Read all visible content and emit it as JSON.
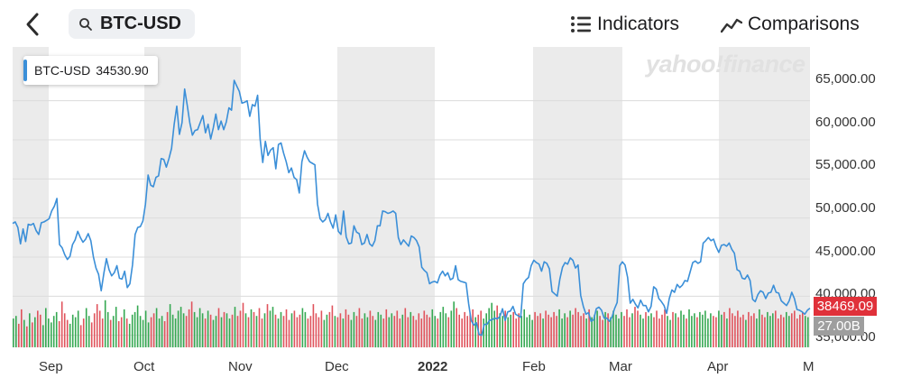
{
  "header": {
    "search_value": "BTC-USD",
    "indicators_label": "Indicators",
    "comparisons_label": "Comparisons"
  },
  "quote": {
    "symbol": "BTC-USD",
    "value": "34530.90"
  },
  "watermark": "yahoo!finance",
  "last_price_label": "38469.09",
  "volume_label": "27.00B",
  "colors": {
    "line": "#3b8fd8",
    "vol_up": "#35a852",
    "vol_down": "#e0535c",
    "band": "#ebebeb",
    "last_price": "#e0313a"
  },
  "chart_data": {
    "type": "line",
    "ticker": "BTC-USD",
    "x_tick_labels": [
      "Sep",
      "Oct",
      "Nov",
      "Dec",
      "2022",
      "Feb",
      "Mar",
      "Apr",
      "M"
    ],
    "y_tick_labels": [
      "65,000.00",
      "60,000.00",
      "55,000.00",
      "50,000.00",
      "45,000.00",
      "40,000.00",
      "35,000.00"
    ],
    "ylim": [
      34500,
      67500
    ],
    "x_start": "2021-08-24",
    "series": [
      {
        "values": [
          49300,
          49500,
          48800,
          46700,
          48600,
          47000,
          49200,
          49100,
          49300,
          48400,
          47900,
          49400,
          49500,
          49700,
          49900,
          50900,
          51500,
          52500,
          46600,
          46200,
          45300,
          44700,
          45100,
          46600,
          47200,
          48300,
          47500,
          46900,
          47300,
          48000,
          47100,
          45000,
          43600,
          42800,
          40700,
          42900,
          44800,
          43400,
          42600,
          43000,
          43900,
          42300,
          42200,
          43200,
          41100,
          41600,
          44000,
          47900,
          48800,
          48900,
          49600,
          51800,
          55500,
          54200,
          54000,
          55200,
          55400,
          57600,
          57500,
          56500,
          57600,
          58900,
          62000,
          64300,
          60700,
          62200,
          66500,
          64400,
          62200,
          60600,
          61200,
          61300,
          62200,
          63100,
          60900,
          62000,
          60100,
          61500,
          63300,
          61300,
          62400,
          61300,
          62300,
          64100,
          63800,
          67600,
          66900,
          66200,
          64700,
          64800,
          65000,
          63000,
          64500,
          64300,
          65700,
          60100,
          57100,
          59800,
          58000,
          58700,
          59000,
          56300,
          59400,
          59600,
          58300,
          57200,
          55800,
          56400,
          55200,
          54900,
          53200,
          57200,
          58600,
          57800,
          57200,
          57000,
          56800,
          51800,
          49900,
          49500,
          49800,
          50600,
          49500,
          48700,
          50400,
          48300,
          47900,
          50900,
          47600,
          46700,
          46800,
          49000,
          48200,
          48000,
          46600,
          46800,
          47900,
          46700,
          46400,
          47100,
          49000,
          49000,
          50900,
          50800,
          50600,
          50700,
          50900,
          50600,
          47500,
          46600,
          47200,
          46800,
          46400,
          47700,
          47500,
          47100,
          46300,
          43700,
          43300,
          43000,
          41600,
          41800,
          41900,
          41700,
          42700,
          43200,
          42600,
          43000,
          42100,
          42300,
          43900,
          42100,
          41900,
          41800,
          41700,
          39000,
          36900,
          36300,
          36600,
          35100,
          35000,
          36400,
          36400,
          36900,
          37000,
          37200,
          37100,
          37400,
          38400,
          36900,
          38000,
          38100,
          38700,
          37700,
          37500,
          37300,
          41600,
          42100,
          42400,
          43900,
          44600,
          44300,
          44100,
          43200,
          44400,
          44200,
          43500,
          40600,
          40300,
          40000,
          42200,
          43700,
          44300,
          44100,
          44900,
          44600,
          43600,
          44000,
          40100,
          38700,
          37700,
          37900,
          36800,
          37000,
          38400,
          38600,
          38200,
          37200,
          37200,
          36800,
          37300,
          38400,
          39200,
          43900,
          44400,
          44000,
          42400,
          39100,
          39600,
          39000,
          38500,
          39500,
          38800,
          38800,
          38000,
          38700,
          41200,
          40900,
          39700,
          39300,
          38800,
          37800,
          39700,
          40800,
          40500,
          41500,
          41100,
          41400,
          42000,
          41900,
          43100,
          44300,
          44500,
          44200,
          44400,
          46800,
          47100,
          47500,
          47100,
          47300,
          46300,
          45600,
          46500,
          46600,
          46400,
          46800,
          46000,
          45500,
          43400,
          43200,
          42300,
          42200,
          42700,
          42000,
          39600,
          39300,
          40200,
          40700,
          40500,
          39700,
          40400,
          40500,
          41400,
          40500,
          40400,
          39400,
          39100,
          38800,
          39400,
          40500,
          39700,
          38300,
          38200,
          38000,
          37700,
          38200,
          38469
        ]
      }
    ],
    "volume_series": [
      22,
      24,
      18,
      29,
      21,
      16,
      26,
      19,
      23,
      28,
      25,
      17,
      30,
      22,
      19,
      24,
      27,
      20,
      35,
      26,
      21,
      18,
      25,
      23,
      28,
      17,
      22,
      30,
      24,
      19,
      26,
      33,
      28,
      22,
      36,
      27,
      21,
      24,
      31,
      20,
      23,
      29,
      22,
      18,
      25,
      27,
      32,
      24,
      21,
      28,
      19,
      23,
      26,
      30,
      22,
      24,
      20,
      27,
      33,
      25,
      22,
      28,
      31,
      26,
      24,
      29,
      35,
      27,
      23,
      30,
      26,
      22,
      28,
      25,
      21,
      24,
      30,
      23,
      27,
      26,
      22,
      25,
      31,
      24,
      28,
      34,
      26,
      23,
      29,
      27,
      24,
      30,
      22,
      26,
      33,
      28,
      31,
      25,
      22,
      27,
      24,
      29,
      21,
      26,
      28,
      23,
      25,
      30,
      27,
      22,
      24,
      33,
      26,
      23,
      28,
      21,
      25,
      27,
      32,
      24,
      23,
      26,
      22,
      29,
      25,
      21,
      27,
      24,
      30,
      22,
      26,
      23,
      28,
      24,
      21,
      27,
      25,
      22,
      29,
      23,
      26,
      24,
      28,
      22,
      25,
      30,
      23,
      27,
      24,
      21,
      26,
      22,
      28,
      25,
      23,
      29,
      24,
      22,
      27,
      31,
      26,
      23,
      28,
      35,
      30,
      25,
      22,
      27,
      24,
      26,
      29,
      23,
      25,
      28,
      22,
      26,
      30,
      34,
      28,
      32,
      26,
      24,
      28,
      23,
      25,
      27,
      22,
      26,
      24,
      29,
      23,
      25,
      21,
      27,
      24,
      26,
      22,
      28,
      25,
      23,
      27,
      24,
      29,
      22,
      26,
      23,
      28,
      25,
      30,
      27,
      24,
      26,
      22,
      29,
      23,
      25,
      28,
      24,
      21,
      27,
      26,
      23,
      28,
      25,
      22,
      27,
      24,
      29,
      23,
      26,
      31,
      28,
      25,
      22,
      27,
      24,
      26,
      23,
      28,
      22,
      25,
      29,
      24,
      21,
      27,
      26,
      23,
      28,
      25,
      22,
      29,
      24,
      26,
      23,
      27,
      25,
      28,
      22,
      26,
      24,
      23,
      28,
      25,
      27,
      22,
      30,
      26,
      24,
      28,
      23,
      25,
      21,
      27,
      24,
      26,
      22,
      29,
      25,
      23,
      27,
      24,
      26,
      28,
      22,
      25,
      23,
      27,
      24,
      26,
      28,
      22,
      25,
      27,
      24,
      23
    ]
  }
}
